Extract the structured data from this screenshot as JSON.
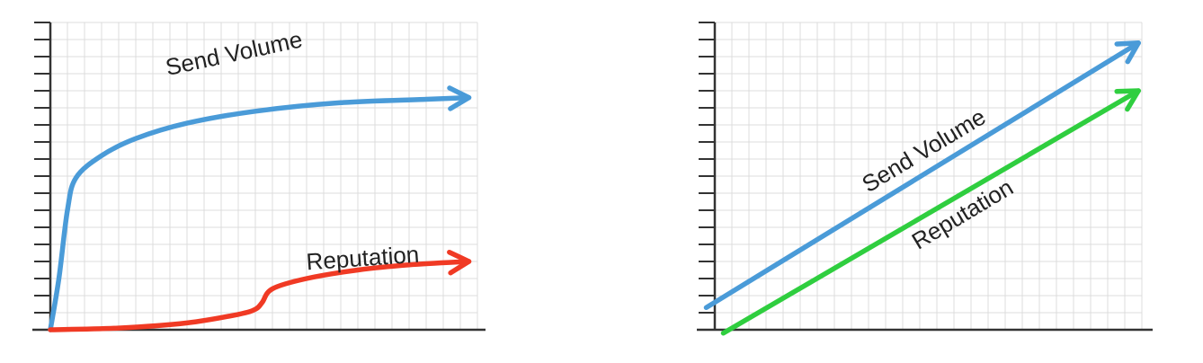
{
  "colors": {
    "grid": "#dcdcdc",
    "axis": "#333333",
    "send_volume": "#4a9bd8",
    "reputation_left": "#f03a24",
    "reputation_right": "#2fce3f"
  },
  "chart_data": [
    {
      "type": "line",
      "grid": true,
      "axis_ticks": "none",
      "series": [
        {
          "name": "Send Volume",
          "color_key": "send_volume",
          "points": [
            [
              0,
              0
            ],
            [
              0.5,
              3
            ],
            [
              1,
              7
            ],
            [
              1.5,
              8.9
            ],
            [
              3,
              10.2
            ],
            [
              5,
              11.2
            ],
            [
              8,
              12.1
            ],
            [
              12,
              12.8
            ],
            [
              17,
              13.3
            ],
            [
              22,
              13.5
            ],
            [
              24.5,
              13.6
            ]
          ]
        },
        {
          "name": "Reputation",
          "color_key": "reputation_left",
          "points": [
            [
              0,
              0
            ],
            [
              4,
              0.1
            ],
            [
              8,
              0.4
            ],
            [
              11,
              0.9
            ],
            [
              12,
              1.2
            ],
            [
              12.4,
              1.6
            ],
            [
              13,
              2.4
            ],
            [
              15,
              3.0
            ],
            [
              18,
              3.5
            ],
            [
              21,
              3.8
            ],
            [
              24.5,
              4.0
            ]
          ]
        }
      ]
    },
    {
      "type": "line",
      "grid": true,
      "axis_ticks": "none",
      "series": [
        {
          "name": "Send Volume",
          "color_key": "send_volume",
          "points": [
            [
              -0.5,
              1.3
            ],
            [
              24.8,
              16.8
            ]
          ]
        },
        {
          "name": "Reputation",
          "color_key": "reputation_right",
          "points": [
            [
              0.5,
              -0.2
            ],
            [
              24.8,
              14.0
            ]
          ]
        }
      ]
    }
  ]
}
